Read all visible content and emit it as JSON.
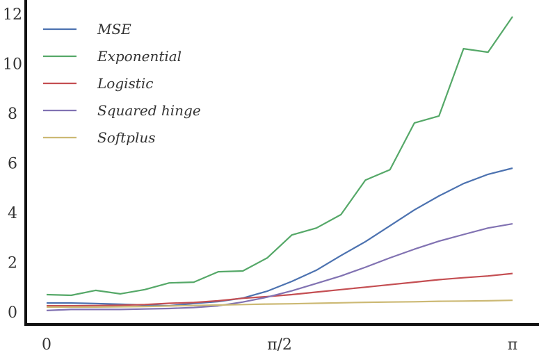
{
  "chart_data": {
    "type": "line",
    "title": "",
    "xlabel": "",
    "ylabel": "",
    "xlim": [
      0,
      3.14159
    ],
    "ylim": [
      0,
      12
    ],
    "grid": false,
    "legend_position": "top-left",
    "x_ticks": [
      {
        "value": 0,
        "label": "0"
      },
      {
        "value": 1.5708,
        "label": "π/2",
        "num": "π",
        "den": "2"
      },
      {
        "value": 3.14159,
        "label": "π"
      }
    ],
    "y_ticks": [
      0,
      2,
      4,
      6,
      8,
      10,
      12
    ],
    "x": [
      0,
      0.1653,
      0.3307,
      0.496,
      0.6614,
      0.8267,
      0.9921,
      1.1574,
      1.3228,
      1.4881,
      1.6535,
      1.8188,
      1.9842,
      2.1495,
      2.3149,
      2.4802,
      2.6456,
      2.8109,
      2.9763,
      3.1416
    ],
    "series": [
      {
        "name": "MSE",
        "color": "#4c72b0",
        "values": [
          0.36,
          0.36,
          0.34,
          0.31,
          0.28,
          0.25,
          0.34,
          0.42,
          0.56,
          0.84,
          1.23,
          1.68,
          2.27,
          2.83,
          3.47,
          4.11,
          4.67,
          5.17,
          5.54,
          5.79
        ]
      },
      {
        "name": "Exponential",
        "color": "#55a868",
        "values": [
          0.7,
          0.67,
          0.87,
          0.73,
          0.9,
          1.17,
          1.2,
          1.62,
          1.65,
          2.18,
          3.1,
          3.38,
          3.92,
          5.31,
          5.73,
          7.61,
          7.89,
          10.6,
          10.46,
          11.89
        ]
      },
      {
        "name": "Logistic",
        "color": "#c44e52",
        "values": [
          0.25,
          0.25,
          0.26,
          0.27,
          0.3,
          0.35,
          0.38,
          0.45,
          0.55,
          0.62,
          0.7,
          0.8,
          0.9,
          1.0,
          1.1,
          1.2,
          1.3,
          1.38,
          1.45,
          1.55
        ]
      },
      {
        "name": "Squared hinge",
        "color": "#8172b2",
        "values": [
          0.06,
          0.1,
          0.1,
          0.1,
          0.12,
          0.14,
          0.18,
          0.25,
          0.4,
          0.6,
          0.85,
          1.15,
          1.45,
          1.8,
          2.18,
          2.53,
          2.85,
          3.12,
          3.38,
          3.55
        ]
      },
      {
        "name": "Softplus",
        "color": "#ccb974",
        "values": [
          0.2,
          0.2,
          0.2,
          0.21,
          0.22,
          0.24,
          0.26,
          0.28,
          0.3,
          0.32,
          0.33,
          0.35,
          0.37,
          0.39,
          0.4,
          0.41,
          0.43,
          0.44,
          0.45,
          0.47
        ]
      }
    ]
  }
}
